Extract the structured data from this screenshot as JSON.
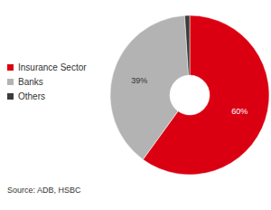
{
  "chart_data": {
    "type": "pie",
    "categories": [
      "Insurance Sector",
      "Banks",
      "Others"
    ],
    "values": [
      60,
      39,
      1
    ],
    "value_labels": [
      "60%",
      "39%",
      null
    ],
    "colors": [
      "#db0011",
      "#b3b3b3",
      "#3c3c3c"
    ],
    "data_labels": true,
    "legend": "left",
    "source": "Source: ADB, HSBC"
  }
}
